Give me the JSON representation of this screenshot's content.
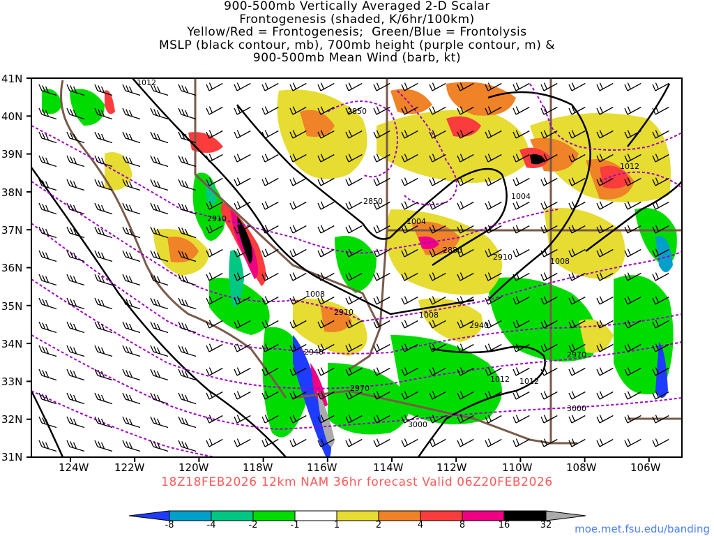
{
  "title": {
    "line1": "900-500mb Vertically Averaged 2-D Scalar",
    "line2": "Frontogenesis (shaded, K/6hr/100km)",
    "line3": "Yellow/Red = Frontogenesis;  Green/Blue = Frontolysis",
    "line4": "MSLP (black contour, mb), 700mb height (purple contour, m) &",
    "line5": "900-500mb Mean Wind (barb, kt)"
  },
  "valid_text": "18Z18FEB2026 12km NAM 36hr forecast Valid 06Z20FEB2026",
  "credit": "moe.met.fsu.edu/banding",
  "map": {
    "lat_labels": [
      "41N",
      "40N",
      "39N",
      "38N",
      "37N",
      "36N",
      "35N",
      "34N",
      "33N",
      "32N",
      "31N"
    ],
    "lon_labels": [
      "124W",
      "122W",
      "120W",
      "118W",
      "116W",
      "114W",
      "112W",
      "110W",
      "108W",
      "106W"
    ],
    "mslp_labels": [
      "1012",
      "1004",
      "1004",
      "1008",
      "1008",
      "1008",
      "1012",
      "1012",
      "1012"
    ],
    "height_labels": [
      "2850",
      "2850",
      "2910",
      "2880",
      "2910",
      "2910",
      "2940",
      "2940",
      "2970",
      "2970",
      "3000",
      "3000"
    ]
  },
  "colorbar": {
    "labels": [
      "-8",
      "-4",
      "-2",
      "-1",
      "1",
      "2",
      "4",
      "8",
      "16",
      "32"
    ],
    "colors": [
      "#1e3cff",
      "#00a0c8",
      "#00c882",
      "#00dc00",
      "#ffffff",
      "#e6dc32",
      "#f08228",
      "#fa3c3c",
      "#f00082",
      "#000000",
      "#aaaaaa"
    ]
  },
  "colors": {
    "mslp": "#000000",
    "height": "#a000c8",
    "borders": "#7a5a4a",
    "valid_text": "#ff5a5a",
    "credit": "#4a7dff"
  }
}
